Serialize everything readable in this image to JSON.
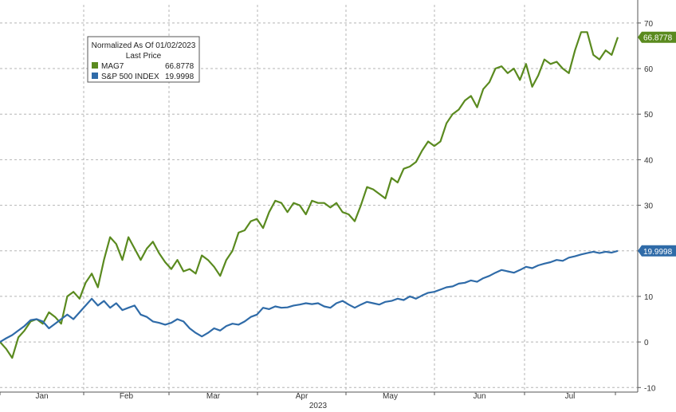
{
  "chart_data": {
    "type": "line",
    "x_label": "2023",
    "x_ticks": [
      "Jan",
      "Feb",
      "Mar",
      "Apr",
      "May",
      "Jun",
      "Jul"
    ],
    "y_ticks": [
      -10,
      0,
      10,
      20,
      30,
      40,
      50,
      60,
      70
    ],
    "ylim": [
      -11,
      74
    ],
    "grid": true,
    "y_axis_side": "right",
    "legend": {
      "placement": "top-left",
      "title": "Normalized As Of 01/02/2023",
      "value_header": "Last Price"
    },
    "series": [
      {
        "name": "MAG7",
        "last_value": "66.8778",
        "color": "#5a8a1f",
        "values": [
          0,
          -1.5,
          -3.5,
          1,
          2.5,
          4.5,
          5,
          4,
          6.5,
          5.5,
          4,
          10,
          11,
          9.5,
          13,
          15,
          12,
          18,
          23,
          21.5,
          18,
          23,
          20.5,
          18,
          20.5,
          22,
          19.5,
          17.5,
          16,
          18,
          15.5,
          16,
          15,
          19,
          18,
          16.5,
          14.5,
          18,
          20,
          24,
          24.5,
          26.5,
          27,
          25,
          28.5,
          31,
          30.5,
          28.5,
          30.5,
          30,
          28,
          31,
          30.5,
          30.5,
          29.5,
          30.5,
          28.5,
          28,
          26.5,
          30,
          34,
          33.5,
          32.5,
          31.5,
          36,
          35,
          38,
          38.5,
          39.5,
          42,
          44,
          43,
          44,
          48,
          50,
          51,
          53,
          54,
          51.5,
          55.5,
          57,
          60,
          60.5,
          59,
          60,
          57.5,
          61,
          56,
          58.5,
          62,
          61,
          61.5,
          60,
          59,
          64,
          68,
          68,
          63,
          62,
          64,
          63,
          66.8778
        ]
      },
      {
        "name": "S&P 500 INDEX",
        "last_value": "19.9998",
        "color": "#2f6ba8",
        "values": [
          0,
          0.8,
          1.5,
          2.5,
          3.5,
          4.8,
          5,
          4.5,
          3,
          4,
          5,
          6,
          5,
          6.5,
          8,
          9.5,
          8,
          9,
          7.5,
          8.5,
          7,
          7.5,
          8,
          6,
          5.5,
          4.5,
          4.2,
          3.8,
          4.2,
          5,
          4.5,
          3,
          2,
          1.2,
          2,
          3,
          2.5,
          3.5,
          4,
          3.8,
          4.5,
          5.5,
          6,
          7.5,
          7.2,
          7.8,
          7.5,
          7.6,
          8,
          8.2,
          8.5,
          8.3,
          8.5,
          7.8,
          7.5,
          8.5,
          9,
          8.2,
          7.5,
          8.2,
          8.8,
          8.5,
          8.2,
          8.8,
          9,
          9.5,
          9.2,
          10,
          9.5,
          10.2,
          10.8,
          11,
          11.5,
          12,
          12.2,
          12.8,
          13,
          13.5,
          13.2,
          14,
          14.5,
          15.2,
          15.8,
          15.5,
          15.2,
          15.8,
          16.5,
          16.2,
          16.8,
          17.2,
          17.5,
          18,
          17.8,
          18.5,
          18.8,
          19.2,
          19.5,
          19.8,
          19.5,
          19.8,
          19.6,
          19.9998
        ]
      }
    ]
  }
}
